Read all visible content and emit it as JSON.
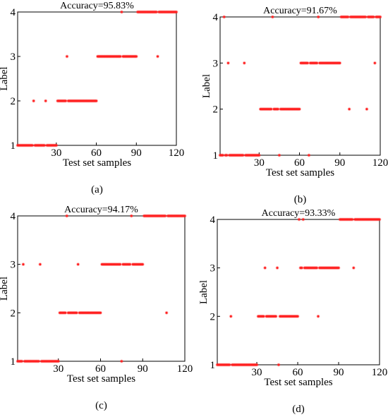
{
  "colors": {
    "marker": "#ff1f1f",
    "axis": "#000000"
  },
  "chart_data": [
    {
      "type": "scatter",
      "title": "Accuracy=95.83%",
      "panel_label": "(a)",
      "xlabel": "Test set samples",
      "ylabel": "Label",
      "xlim": [
        1,
        120
      ],
      "ylim": [
        1,
        4
      ],
      "xticks": [
        30,
        60,
        90,
        120
      ],
      "yticks": [
        1,
        2,
        3,
        4
      ],
      "grid": false,
      "segments": [
        {
          "y": 1,
          "x": [
            1,
            30
          ]
        },
        {
          "y": 2,
          "x": [
            31,
            60
          ]
        },
        {
          "y": 3,
          "x": [
            61,
            90
          ]
        },
        {
          "y": 4,
          "x": [
            91,
            120
          ]
        }
      ],
      "moved": [
        {
          "x": 13,
          "from": 1,
          "to": 2
        },
        {
          "x": 22,
          "from": 1,
          "to": 2
        },
        {
          "x": 38,
          "from": 2,
          "to": 3
        },
        {
          "x": 79,
          "from": 3,
          "to": 4
        },
        {
          "x": 106,
          "from": 4,
          "to": 3
        }
      ]
    },
    {
      "type": "scatter",
      "title": "Accuracy=91.67%",
      "panel_label": "(b)",
      "xlabel": "Test set samples",
      "ylabel": "Label",
      "xlim": [
        1,
        120
      ],
      "ylim": [
        1,
        4
      ],
      "xticks": [
        30,
        60,
        90,
        120
      ],
      "yticks": [
        1,
        2,
        3,
        4
      ],
      "grid": false,
      "segments": [
        {
          "y": 1,
          "x": [
            1,
            30
          ]
        },
        {
          "y": 2,
          "x": [
            31,
            60
          ]
        },
        {
          "y": 3,
          "x": [
            61,
            90
          ]
        },
        {
          "y": 4,
          "x": [
            91,
            120
          ]
        }
      ],
      "moved": [
        {
          "x": 4,
          "from": 1,
          "to": 4
        },
        {
          "x": 7,
          "from": 1,
          "to": 3
        },
        {
          "x": 19,
          "from": 1,
          "to": 3
        },
        {
          "x": 40,
          "from": 2,
          "to": 4
        },
        {
          "x": 45,
          "from": 2,
          "to": 1
        },
        {
          "x": 67,
          "from": 3,
          "to": 1
        },
        {
          "x": 74,
          "from": 3,
          "to": 4
        },
        {
          "x": 97,
          "from": 4,
          "to": 2
        },
        {
          "x": 110,
          "from": 4,
          "to": 2
        },
        {
          "x": 116,
          "from": 4,
          "to": 3
        }
      ]
    },
    {
      "type": "scatter",
      "title": "Accuracy=94.17%",
      "panel_label": "(c)",
      "xlabel": "Test set samples",
      "ylabel": "Label",
      "xlim": [
        1,
        120
      ],
      "ylim": [
        1,
        4
      ],
      "xticks": [
        30,
        60,
        90,
        120
      ],
      "yticks": [
        1,
        2,
        3,
        4
      ],
      "grid": false,
      "segments": [
        {
          "y": 1,
          "x": [
            1,
            30
          ]
        },
        {
          "y": 2,
          "x": [
            31,
            60
          ]
        },
        {
          "y": 3,
          "x": [
            61,
            90
          ]
        },
        {
          "y": 4,
          "x": [
            91,
            120
          ]
        }
      ],
      "moved": [
        {
          "x": 5,
          "from": 1,
          "to": 3
        },
        {
          "x": 17,
          "from": 1,
          "to": 3
        },
        {
          "x": 36,
          "from": 2,
          "to": 4
        },
        {
          "x": 44,
          "from": 2,
          "to": 3
        },
        {
          "x": 75,
          "from": 3,
          "to": 1
        },
        {
          "x": 82,
          "from": 3,
          "to": 4
        },
        {
          "x": 107,
          "from": 4,
          "to": 2
        }
      ]
    },
    {
      "type": "scatter",
      "title": "Accuracy=93.33%",
      "panel_label": "(d)",
      "xlabel": "Test set samples",
      "ylabel": "Label",
      "xlim": [
        1,
        120
      ],
      "ylim": [
        1,
        4
      ],
      "xticks": [
        30,
        60,
        90,
        120
      ],
      "yticks": [
        1,
        2,
        3,
        4
      ],
      "grid": false,
      "segments": [
        {
          "y": 1,
          "x": [
            1,
            30
          ]
        },
        {
          "y": 2,
          "x": [
            31,
            60
          ]
        },
        {
          "y": 3,
          "x": [
            61,
            90
          ]
        },
        {
          "y": 4,
          "x": [
            91,
            120
          ]
        }
      ],
      "moved": [
        {
          "x": 11,
          "from": 1,
          "to": 2
        },
        {
          "x": 36,
          "from": 2,
          "to": 3
        },
        {
          "x": 45,
          "from": 2,
          "to": 3
        },
        {
          "x": 46,
          "from": 2,
          "to": 1
        },
        {
          "x": 61,
          "from": 3,
          "to": 4
        },
        {
          "x": 64,
          "from": 3,
          "to": 4
        },
        {
          "x": 75,
          "from": 3,
          "to": 2
        },
        {
          "x": 101,
          "from": 4,
          "to": 3
        }
      ]
    }
  ]
}
